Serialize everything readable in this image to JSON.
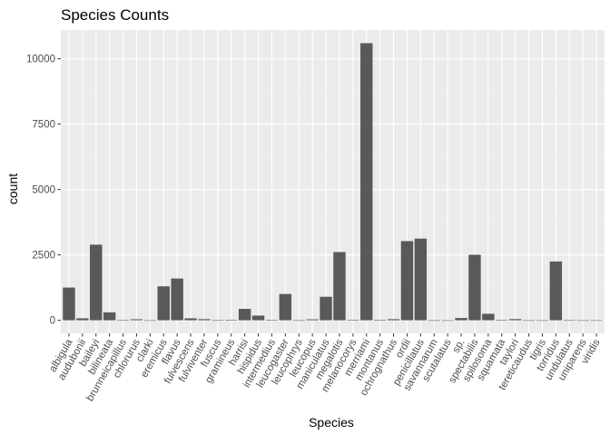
{
  "chart_data": {
    "type": "bar",
    "title": "Species Counts",
    "xlabel": "Species",
    "ylabel": "count",
    "ylim": [
      -500,
      11100
    ],
    "yticks": [
      0,
      2500,
      5000,
      7500,
      10000
    ],
    "ytick_labels": [
      "0",
      "2500",
      "5000",
      "7500",
      "10000"
    ],
    "grid": true,
    "legend": "none",
    "colors": {
      "bar": "#595959",
      "panel": "#ebebeb",
      "grid_major": "#ffffff",
      "grid_minor": "#f2f2f2"
    },
    "categories": [
      "albigula",
      "audubonii",
      "baileyi",
      "bilineata",
      "brunneicapillus",
      "chlorurus",
      "clarki",
      "eremicus",
      "flavus",
      "fulvescens",
      "fulviventer",
      "fuscus",
      "gramineus",
      "harrisi",
      "hispidus",
      "intermedius",
      "leucogaster",
      "leucophrys",
      "leucopus",
      "maniculatus",
      "megalotis",
      "melanocorys",
      "merriami",
      "montanus",
      "ochrognathus",
      "ordii",
      "penicillatus",
      "savannarum",
      "scutalatus",
      "sp.",
      "spectabilis",
      "spilosoma",
      "squamata",
      "taylori",
      "tereticaudus",
      "tigris",
      "torridus",
      "undulatus",
      "uniparens",
      "viridis"
    ],
    "values": [
      1252,
      75,
      2891,
      303,
      5,
      39,
      1,
      1299,
      1597,
      75,
      43,
      5,
      8,
      437,
      179,
      9,
      1006,
      2,
      36,
      899,
      2609,
      13,
      10596,
      8,
      43,
      3027,
      3123,
      2,
      1,
      86,
      2504,
      248,
      16,
      46,
      1,
      1,
      2249,
      5,
      1,
      1
    ]
  }
}
